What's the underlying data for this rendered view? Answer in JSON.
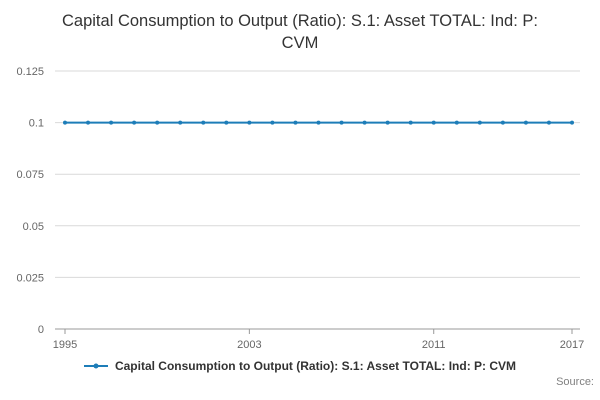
{
  "page": {
    "title": "Capital Consumption to Output (Ratio): S.1: Asset TOTAL: Ind: P: CVM"
  },
  "legend": {
    "label": "Capital Consumption to Output (Ratio): S.1: Asset TOTAL: Ind: P: CVM"
  },
  "footer": {
    "source_label": "Source:"
  },
  "colors": {
    "line": "#1d7db8",
    "grid": "#d9d9d9",
    "axis": "#999999",
    "tick_text": "#666666",
    "title_text": "#333333",
    "legend_text": "#333333",
    "source_text": "#808080"
  },
  "chart_data": {
    "type": "line",
    "title": "Capital Consumption to Output (Ratio): S.1: Asset TOTAL: Ind: P: CVM",
    "xlabel": "",
    "ylabel": "",
    "x": [
      1995,
      1996,
      1997,
      1998,
      1999,
      2000,
      2001,
      2002,
      2003,
      2004,
      2005,
      2006,
      2007,
      2008,
      2009,
      2010,
      2011,
      2012,
      2013,
      2014,
      2015,
      2016,
      2017
    ],
    "series": [
      {
        "name": "Capital Consumption to Output (Ratio): S.1: Asset TOTAL: Ind: P: CVM",
        "values": [
          0.1,
          0.1,
          0.1,
          0.1,
          0.1,
          0.1,
          0.1,
          0.1,
          0.1,
          0.1,
          0.1,
          0.1,
          0.1,
          0.1,
          0.1,
          0.1,
          0.1,
          0.1,
          0.1,
          0.1,
          0.1,
          0.1,
          0.1
        ]
      }
    ],
    "ylim": [
      0,
      0.125
    ],
    "ytick_values": [
      0,
      0.025,
      0.05,
      0.075,
      0.1,
      0.125
    ],
    "ytick_labels": [
      "0",
      "0.025",
      "0.05",
      "0.075",
      "0.1",
      "0.125"
    ],
    "xticks": [
      1995,
      2003,
      2011,
      2017
    ],
    "grid": true,
    "legend_position": "bottom",
    "marker": "circle"
  }
}
